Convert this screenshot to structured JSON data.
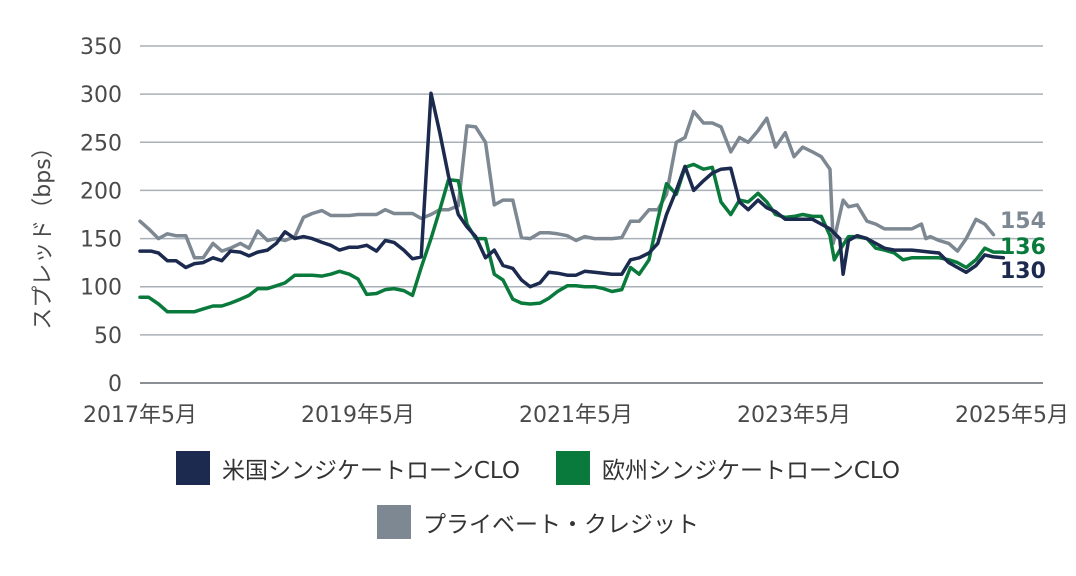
{
  "chart_data": {
    "type": "line",
    "ylabel": "スプレッド（bps）",
    "ylim": [
      0,
      350
    ],
    "yticks": [
      0,
      50,
      100,
      150,
      200,
      250,
      300,
      350
    ],
    "xticks": [
      "2017年5月",
      "2019年5月",
      "2021年5月",
      "2023年5月",
      "2025年5月"
    ],
    "grid": true,
    "legend_position": "bottom",
    "series": [
      {
        "name": "米国シンジケートローンCLO",
        "color": "#1b2a4e",
        "end_label": "130",
        "points": [
          [
            0.0,
            137
          ],
          [
            0.1,
            137
          ],
          [
            0.17,
            135
          ],
          [
            0.25,
            127
          ],
          [
            0.33,
            127
          ],
          [
            0.42,
            120
          ],
          [
            0.5,
            124
          ],
          [
            0.58,
            125
          ],
          [
            0.67,
            130
          ],
          [
            0.75,
            127
          ],
          [
            0.83,
            137
          ],
          [
            0.92,
            136
          ],
          [
            1.0,
            132
          ],
          [
            1.08,
            136
          ],
          [
            1.17,
            138
          ],
          [
            1.25,
            145
          ],
          [
            1.33,
            157
          ],
          [
            1.42,
            150
          ],
          [
            1.5,
            152
          ],
          [
            1.58,
            150
          ],
          [
            1.67,
            146
          ],
          [
            1.75,
            143
          ],
          [
            1.83,
            138
          ],
          [
            1.92,
            141
          ],
          [
            2.0,
            141
          ],
          [
            2.08,
            143
          ],
          [
            2.17,
            137
          ],
          [
            2.25,
            148
          ],
          [
            2.33,
            146
          ],
          [
            2.42,
            138
          ],
          [
            2.5,
            129
          ],
          [
            2.58,
            131
          ],
          [
            2.67,
            301
          ],
          [
            2.75,
            260
          ],
          [
            2.83,
            215
          ],
          [
            2.92,
            175
          ],
          [
            3.0,
            162
          ],
          [
            3.08,
            152
          ],
          [
            3.17,
            130
          ],
          [
            3.25,
            138
          ],
          [
            3.33,
            122
          ],
          [
            3.42,
            119
          ],
          [
            3.5,
            107
          ],
          [
            3.58,
            100
          ],
          [
            3.67,
            104
          ],
          [
            3.75,
            115
          ],
          [
            3.83,
            114
          ],
          [
            3.92,
            112
          ],
          [
            4.0,
            112
          ],
          [
            4.08,
            116
          ],
          [
            4.17,
            115
          ],
          [
            4.25,
            114
          ],
          [
            4.33,
            113
          ],
          [
            4.42,
            113
          ],
          [
            4.5,
            128
          ],
          [
            4.58,
            130
          ],
          [
            4.67,
            135
          ],
          [
            4.75,
            145
          ],
          [
            4.83,
            175
          ],
          [
            4.92,
            200
          ],
          [
            5.0,
            225
          ],
          [
            5.08,
            200
          ],
          [
            5.17,
            210
          ],
          [
            5.25,
            218
          ],
          [
            5.33,
            222
          ],
          [
            5.42,
            223
          ],
          [
            5.5,
            188
          ],
          [
            5.58,
            180
          ],
          [
            5.67,
            190
          ],
          [
            5.75,
            182
          ],
          [
            5.83,
            178
          ],
          [
            5.92,
            170
          ],
          [
            6.0,
            170
          ],
          [
            6.08,
            170
          ],
          [
            6.17,
            170
          ],
          [
            6.25,
            165
          ],
          [
            6.33,
            160
          ],
          [
            6.42,
            150
          ],
          [
            6.45,
            113
          ],
          [
            6.5,
            148
          ],
          [
            6.58,
            153
          ],
          [
            6.67,
            150
          ],
          [
            6.75,
            145
          ],
          [
            6.83,
            140
          ],
          [
            6.92,
            138
          ],
          [
            7.0,
            138
          ],
          [
            7.08,
            138
          ],
          [
            7.17,
            137
          ],
          [
            7.25,
            136
          ],
          [
            7.33,
            135
          ],
          [
            7.42,
            125
          ],
          [
            7.5,
            120
          ],
          [
            7.58,
            115
          ],
          [
            7.67,
            122
          ],
          [
            7.75,
            133
          ],
          [
            7.83,
            131
          ],
          [
            7.92,
            130
          ]
        ]
      },
      {
        "name": "欧州シンジケートローンCLO",
        "color": "#0a7a3c",
        "end_label": "136",
        "points": [
          [
            0.0,
            89
          ],
          [
            0.08,
            89
          ],
          [
            0.17,
            82
          ],
          [
            0.25,
            74
          ],
          [
            0.33,
            74
          ],
          [
            0.42,
            74
          ],
          [
            0.5,
            74
          ],
          [
            0.58,
            77
          ],
          [
            0.67,
            80
          ],
          [
            0.75,
            80
          ],
          [
            0.83,
            83
          ],
          [
            0.92,
            87
          ],
          [
            1.0,
            91
          ],
          [
            1.08,
            98
          ],
          [
            1.17,
            98
          ],
          [
            1.25,
            101
          ],
          [
            1.33,
            104
          ],
          [
            1.42,
            112
          ],
          [
            1.5,
            112
          ],
          [
            1.58,
            112
          ],
          [
            1.67,
            111
          ],
          [
            1.75,
            113
          ],
          [
            1.83,
            116
          ],
          [
            1.92,
            113
          ],
          [
            2.0,
            108
          ],
          [
            2.08,
            92
          ],
          [
            2.17,
            93
          ],
          [
            2.25,
            97
          ],
          [
            2.33,
            98
          ],
          [
            2.42,
            96
          ],
          [
            2.5,
            91
          ],
          [
            2.58,
            120
          ],
          [
            2.67,
            150
          ],
          [
            2.75,
            180
          ],
          [
            2.83,
            211
          ],
          [
            2.92,
            210
          ],
          [
            3.0,
            165
          ],
          [
            3.08,
            150
          ],
          [
            3.17,
            150
          ],
          [
            3.25,
            113
          ],
          [
            3.33,
            107
          ],
          [
            3.42,
            87
          ],
          [
            3.5,
            83
          ],
          [
            3.58,
            82
          ],
          [
            3.67,
            83
          ],
          [
            3.75,
            88
          ],
          [
            3.83,
            95
          ],
          [
            3.92,
            101
          ],
          [
            4.0,
            101
          ],
          [
            4.08,
            100
          ],
          [
            4.17,
            100
          ],
          [
            4.25,
            98
          ],
          [
            4.33,
            95
          ],
          [
            4.42,
            97
          ],
          [
            4.5,
            120
          ],
          [
            4.58,
            113
          ],
          [
            4.67,
            128
          ],
          [
            4.75,
            170
          ],
          [
            4.83,
            207
          ],
          [
            4.92,
            196
          ],
          [
            5.0,
            224
          ],
          [
            5.08,
            227
          ],
          [
            5.17,
            222
          ],
          [
            5.25,
            224
          ],
          [
            5.33,
            188
          ],
          [
            5.42,
            175
          ],
          [
            5.5,
            190
          ],
          [
            5.58,
            188
          ],
          [
            5.67,
            197
          ],
          [
            5.75,
            188
          ],
          [
            5.83,
            175
          ],
          [
            5.92,
            172
          ],
          [
            6.0,
            173
          ],
          [
            6.08,
            175
          ],
          [
            6.17,
            173
          ],
          [
            6.25,
            173
          ],
          [
            6.33,
            153
          ],
          [
            6.37,
            128
          ],
          [
            6.42,
            138
          ],
          [
            6.5,
            152
          ],
          [
            6.58,
            152
          ],
          [
            6.67,
            150
          ],
          [
            6.75,
            140
          ],
          [
            6.83,
            138
          ],
          [
            6.92,
            135
          ],
          [
            7.0,
            128
          ],
          [
            7.08,
            130
          ],
          [
            7.17,
            130
          ],
          [
            7.25,
            130
          ],
          [
            7.33,
            130
          ],
          [
            7.42,
            128
          ],
          [
            7.5,
            125
          ],
          [
            7.58,
            120
          ],
          [
            7.67,
            128
          ],
          [
            7.75,
            140
          ],
          [
            7.83,
            136
          ],
          [
            7.92,
            136
          ]
        ]
      },
      {
        "name": "プライベート・クレジット",
        "color": "#7d8892",
        "end_label": "154",
        "points": [
          [
            0.0,
            168
          ],
          [
            0.08,
            160
          ],
          [
            0.17,
            150
          ],
          [
            0.25,
            155
          ],
          [
            0.33,
            153
          ],
          [
            0.42,
            153
          ],
          [
            0.5,
            130
          ],
          [
            0.58,
            130
          ],
          [
            0.67,
            145
          ],
          [
            0.75,
            137
          ],
          [
            0.83,
            140
          ],
          [
            0.92,
            145
          ],
          [
            1.0,
            140
          ],
          [
            1.08,
            158
          ],
          [
            1.17,
            148
          ],
          [
            1.25,
            150
          ],
          [
            1.33,
            148
          ],
          [
            1.42,
            152
          ],
          [
            1.5,
            172
          ],
          [
            1.58,
            176
          ],
          [
            1.67,
            179
          ],
          [
            1.75,
            174
          ],
          [
            1.83,
            174
          ],
          [
            1.92,
            174
          ],
          [
            2.0,
            175
          ],
          [
            2.08,
            175
          ],
          [
            2.17,
            175
          ],
          [
            2.25,
            180
          ],
          [
            2.33,
            176
          ],
          [
            2.42,
            176
          ],
          [
            2.5,
            176
          ],
          [
            2.58,
            171
          ],
          [
            2.67,
            175
          ],
          [
            2.75,
            180
          ],
          [
            2.83,
            180
          ],
          [
            2.92,
            184
          ],
          [
            3.0,
            267
          ],
          [
            3.08,
            266
          ],
          [
            3.17,
            250
          ],
          [
            3.25,
            185
          ],
          [
            3.33,
            190
          ],
          [
            3.42,
            190
          ],
          [
            3.5,
            151
          ],
          [
            3.58,
            150
          ],
          [
            3.67,
            156
          ],
          [
            3.75,
            156
          ],
          [
            3.83,
            155
          ],
          [
            3.92,
            153
          ],
          [
            4.0,
            148
          ],
          [
            4.08,
            152
          ],
          [
            4.17,
            150
          ],
          [
            4.25,
            150
          ],
          [
            4.33,
            150
          ],
          [
            4.42,
            151
          ],
          [
            4.5,
            168
          ],
          [
            4.58,
            168
          ],
          [
            4.67,
            180
          ],
          [
            4.75,
            180
          ],
          [
            4.83,
            196
          ],
          [
            4.92,
            250
          ],
          [
            5.0,
            255
          ],
          [
            5.08,
            282
          ],
          [
            5.17,
            270
          ],
          [
            5.25,
            270
          ],
          [
            5.33,
            266
          ],
          [
            5.42,
            240
          ],
          [
            5.5,
            255
          ],
          [
            5.58,
            250
          ],
          [
            5.67,
            262
          ],
          [
            5.75,
            275
          ],
          [
            5.83,
            245
          ],
          [
            5.92,
            260
          ],
          [
            6.0,
            235
          ],
          [
            6.08,
            245
          ],
          [
            6.17,
            240
          ],
          [
            6.25,
            235
          ],
          [
            6.33,
            222
          ],
          [
            6.36,
            145
          ],
          [
            6.45,
            190
          ],
          [
            6.5,
            183
          ],
          [
            6.58,
            185
          ],
          [
            6.67,
            168
          ],
          [
            6.75,
            165
          ],
          [
            6.83,
            160
          ],
          [
            6.92,
            160
          ],
          [
            7.0,
            160
          ],
          [
            7.08,
            160
          ],
          [
            7.17,
            165
          ],
          [
            7.21,
            150
          ],
          [
            7.25,
            152
          ],
          [
            7.33,
            148
          ],
          [
            7.42,
            145
          ],
          [
            7.5,
            137
          ],
          [
            7.58,
            150
          ],
          [
            7.67,
            170
          ],
          [
            7.75,
            165
          ],
          [
            7.83,
            154
          ]
        ]
      }
    ]
  }
}
